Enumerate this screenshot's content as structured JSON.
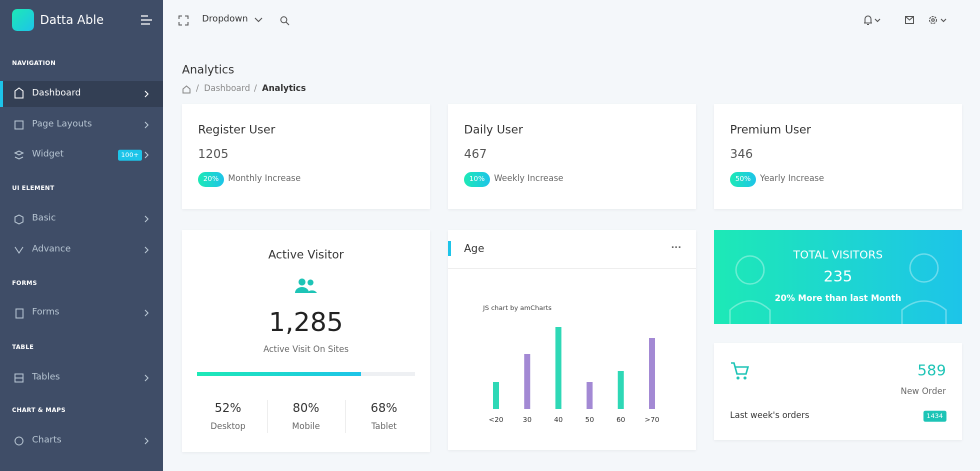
{
  "sidebar": {
    "brand": "Datta Able",
    "sections": [
      {
        "label": "NAVIGATION",
        "items": [
          {
            "label": "Dashboard"
          },
          {
            "label": "Page Layouts"
          },
          {
            "label": "Widget",
            "badge": "100+"
          }
        ]
      },
      {
        "label": "UI ELEMENT",
        "items": [
          {
            "label": "Basic"
          },
          {
            "label": "Advance"
          }
        ]
      },
      {
        "label": "FORMS",
        "items": [
          {
            "label": "Forms"
          }
        ]
      },
      {
        "label": "TABLE",
        "items": [
          {
            "label": "Tables"
          }
        ]
      },
      {
        "label": "CHART & MAPS",
        "items": [
          {
            "label": "Charts"
          }
        ]
      }
    ]
  },
  "header": {
    "dropdown": "Dropdown"
  },
  "page": {
    "title": "Analytics",
    "breadcrumb": [
      "Dashboard",
      "Analytics"
    ]
  },
  "stats": [
    {
      "title": "Register User",
      "value": "1205",
      "percent": "20%",
      "label": "Monthly Increase"
    },
    {
      "title": "Daily User",
      "value": "467",
      "percent": "10%",
      "label": "Weekly Increase"
    },
    {
      "title": "Premium User",
      "value": "346",
      "percent": "50%",
      "label": "Yearly Increase"
    }
  ],
  "active_visitor": {
    "title": "Active Visitor",
    "value": "1,285",
    "label": "Active Visit On Sites",
    "progress": 75,
    "stats": [
      {
        "value": "52%",
        "label": "Desktop"
      },
      {
        "value": "80%",
        "label": "Mobile"
      },
      {
        "value": "68%",
        "label": "Tablet"
      }
    ]
  },
  "chart_data": {
    "type": "bar",
    "title": "Age",
    "credit": "JS chart by amCharts",
    "categories": [
      "<20",
      "30",
      "40",
      "50",
      "60",
      ">70"
    ],
    "values": [
      27,
      55,
      82,
      27,
      38,
      71
    ],
    "colors": [
      "#2ed8b6",
      "#a389d4",
      "#2ed8b6",
      "#a389d4",
      "#2ed8b6",
      "#a389d4"
    ]
  },
  "total_visitors": {
    "title": "TOTAL VISITORS",
    "value": "235",
    "subtitle": "20% More than last Month"
  },
  "orders": {
    "value": "589",
    "label": "New Order",
    "footer": "Last week's orders",
    "badge": "1434"
  }
}
